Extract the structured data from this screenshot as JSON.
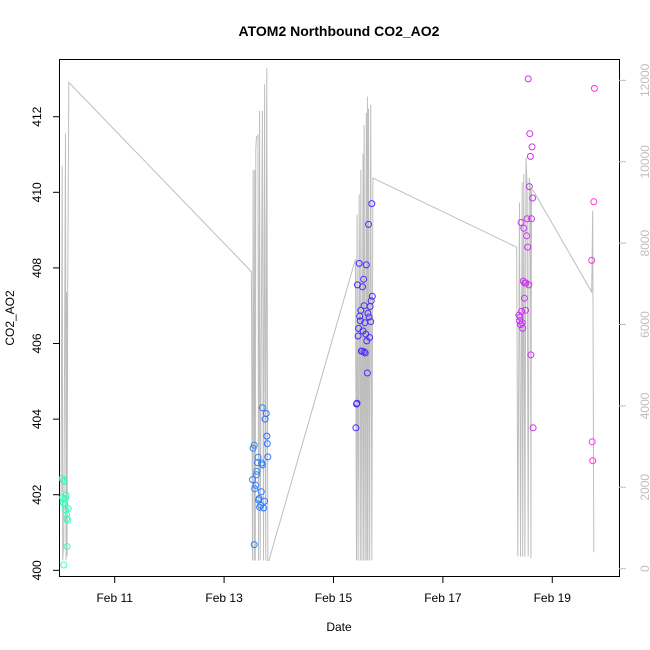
{
  "chart_data": {
    "type": "scatter",
    "title": "ATOM2 Northbound CO2_AO2",
    "xlabel": "Date",
    "ylabel": "CO2_AO2",
    "xlim": [
      10.0,
      20.22
    ],
    "ylim": [
      399.85,
      413.5
    ],
    "y2lim": [
      -180,
      12500
    ],
    "x_ticks": [
      {
        "x": 11,
        "label": "Feb 11"
      },
      {
        "x": 13,
        "label": "Feb 13"
      },
      {
        "x": 15,
        "label": "Feb 15"
      },
      {
        "x": 17,
        "label": "Feb 17"
      },
      {
        "x": 19,
        "label": "Feb 19"
      }
    ],
    "y_ticks": [
      400,
      402,
      404,
      406,
      408,
      410,
      412
    ],
    "y2_ticks": [
      0,
      2000,
      4000,
      6000,
      8000,
      10000,
      12000
    ],
    "grid": false,
    "series": [
      {
        "kind": "points",
        "axis": "left",
        "marker": "open-circle",
        "color_gradient": [
          "#39ffb4",
          "#33c8ff",
          "#2a2aff",
          "#9a33ff",
          "#ff33e0"
        ],
        "points": [
          [
            10.04,
            402.43
          ],
          [
            10.06,
            402.38
          ],
          [
            10.08,
            402.35
          ],
          [
            10.05,
            401.92
          ],
          [
            10.07,
            401.88
          ],
          [
            10.06,
            401.78
          ],
          [
            10.09,
            401.75
          ],
          [
            10.1,
            401.9
          ],
          [
            10.11,
            401.99
          ],
          [
            10.1,
            401.6
          ],
          [
            10.12,
            401.47
          ],
          [
            10.12,
            401.37
          ],
          [
            10.14,
            401.33
          ],
          [
            10.15,
            401.63
          ],
          [
            10.13,
            400.63
          ],
          [
            10.07,
            400.14
          ],
          [
            13.52,
            402.4
          ],
          [
            13.53,
            403.23
          ],
          [
            13.55,
            403.31
          ],
          [
            13.56,
            402.16
          ],
          [
            13.58,
            402.25
          ],
          [
            13.59,
            402.53
          ],
          [
            13.6,
            402.62
          ],
          [
            13.61,
            402.85
          ],
          [
            13.62,
            402.99
          ],
          [
            13.63,
            401.86
          ],
          [
            13.64,
            401.9
          ],
          [
            13.65,
            401.67
          ],
          [
            13.67,
            401.72
          ],
          [
            13.68,
            402.08
          ],
          [
            13.69,
            402.84
          ],
          [
            13.7,
            402.79
          ],
          [
            13.72,
            401.65
          ],
          [
            13.74,
            401.83
          ],
          [
            13.7,
            404.3
          ],
          [
            13.75,
            404.0
          ],
          [
            13.77,
            404.15
          ],
          [
            13.78,
            403.55
          ],
          [
            13.79,
            403.35
          ],
          [
            13.8,
            403.0
          ],
          [
            13.55,
            400.68
          ],
          [
            15.41,
            403.77
          ],
          [
            15.42,
            404.4
          ],
          [
            15.43,
            404.42
          ],
          [
            15.44,
            407.55
          ],
          [
            15.45,
            406.2
          ],
          [
            15.46,
            406.4
          ],
          [
            15.47,
            408.12
          ],
          [
            15.48,
            406.72
          ],
          [
            15.49,
            406.6
          ],
          [
            15.5,
            406.88
          ],
          [
            15.51,
            405.8
          ],
          [
            15.52,
            405.8
          ],
          [
            15.53,
            407.5
          ],
          [
            15.54,
            406.33
          ],
          [
            15.55,
            407.7
          ],
          [
            15.56,
            405.78
          ],
          [
            15.57,
            406.55
          ],
          [
            15.58,
            405.75
          ],
          [
            15.59,
            406.25
          ],
          [
            15.6,
            408.08
          ],
          [
            15.61,
            406.07
          ],
          [
            15.62,
            405.22
          ],
          [
            15.63,
            406.8
          ],
          [
            15.64,
            409.15
          ],
          [
            15.65,
            406.7
          ],
          [
            15.66,
            406.16
          ],
          [
            15.67,
            406.98
          ],
          [
            15.68,
            406.58
          ],
          [
            15.69,
            407.13
          ],
          [
            15.7,
            409.7
          ],
          [
            15.71,
            407.25
          ],
          [
            15.56,
            407.0
          ],
          [
            18.39,
            406.75
          ],
          [
            18.4,
            406.6
          ],
          [
            18.41,
            406.7
          ],
          [
            18.42,
            406.5
          ],
          [
            18.43,
            409.2
          ],
          [
            18.44,
            406.85
          ],
          [
            18.45,
            406.55
          ],
          [
            18.46,
            406.4
          ],
          [
            18.47,
            407.65
          ],
          [
            18.48,
            409.05
          ],
          [
            18.49,
            407.2
          ],
          [
            18.5,
            407.6
          ],
          [
            18.51,
            406.88
          ],
          [
            18.52,
            407.6
          ],
          [
            18.53,
            408.85
          ],
          [
            18.54,
            409.3
          ],
          [
            18.55,
            408.55
          ],
          [
            18.56,
            413.0
          ],
          [
            18.57,
            407.55
          ],
          [
            18.58,
            410.15
          ],
          [
            18.59,
            411.55
          ],
          [
            18.6,
            410.95
          ],
          [
            18.61,
            405.7
          ],
          [
            18.62,
            409.3
          ],
          [
            18.63,
            411.2
          ],
          [
            18.64,
            409.85
          ],
          [
            18.65,
            403.77
          ],
          [
            19.72,
            408.2
          ],
          [
            19.73,
            403.4
          ],
          [
            19.74,
            402.9
          ],
          [
            19.76,
            409.75
          ],
          [
            19.77,
            412.75
          ]
        ]
      },
      {
        "kind": "line",
        "axis": "right",
        "color": "#bebebe",
        "points": [
          [
            10.02,
            1800
          ],
          [
            10.04,
            9900
          ],
          [
            10.05,
            200
          ],
          [
            10.07,
            700
          ],
          [
            10.1,
            10700
          ],
          [
            10.11,
            200
          ],
          [
            10.12,
            6800
          ],
          [
            10.13,
            300
          ],
          [
            10.14,
            6800
          ],
          [
            10.16,
            11950
          ],
          [
            13.5,
            7300
          ],
          [
            13.52,
            200
          ],
          [
            13.53,
            9800
          ],
          [
            13.55,
            200
          ],
          [
            13.56,
            9800
          ],
          [
            13.57,
            200
          ],
          [
            13.58,
            10300
          ],
          [
            13.59,
            10600
          ],
          [
            13.62,
            10650
          ],
          [
            13.63,
            200
          ],
          [
            13.65,
            11250
          ],
          [
            13.66,
            200
          ],
          [
            13.7,
            11250
          ],
          [
            13.72,
            200
          ],
          [
            13.74,
            11900
          ],
          [
            13.76,
            200
          ],
          [
            13.78,
            12300
          ],
          [
            13.8,
            200
          ],
          [
            13.82,
            200
          ],
          [
            15.4,
            7600
          ],
          [
            15.42,
            200
          ],
          [
            15.43,
            8700
          ],
          [
            15.45,
            200
          ],
          [
            15.47,
            9200
          ],
          [
            15.49,
            200
          ],
          [
            15.5,
            9800
          ],
          [
            15.52,
            200
          ],
          [
            15.54,
            10200
          ],
          [
            15.55,
            200
          ],
          [
            15.56,
            10900
          ],
          [
            15.58,
            200
          ],
          [
            15.6,
            11200
          ],
          [
            15.61,
            200
          ],
          [
            15.62,
            11600
          ],
          [
            15.63,
            200
          ],
          [
            15.64,
            11300
          ],
          [
            15.66,
            200
          ],
          [
            15.68,
            11400
          ],
          [
            15.7,
            200
          ],
          [
            15.72,
            9600
          ],
          [
            18.35,
            7900
          ],
          [
            18.37,
            300
          ],
          [
            18.4,
            9000
          ],
          [
            18.42,
            300
          ],
          [
            18.45,
            9500
          ],
          [
            18.46,
            300
          ],
          [
            18.48,
            9700
          ],
          [
            18.5,
            300
          ],
          [
            18.52,
            10100
          ],
          [
            18.54,
            9400
          ],
          [
            18.56,
            300
          ],
          [
            18.58,
            9600
          ],
          [
            18.6,
            9300
          ],
          [
            18.61,
            250
          ],
          [
            18.62,
            9300
          ],
          [
            18.65,
            9300
          ],
          [
            19.72,
            6800
          ],
          [
            19.74,
            8800
          ],
          [
            19.76,
            400
          ]
        ]
      }
    ]
  }
}
